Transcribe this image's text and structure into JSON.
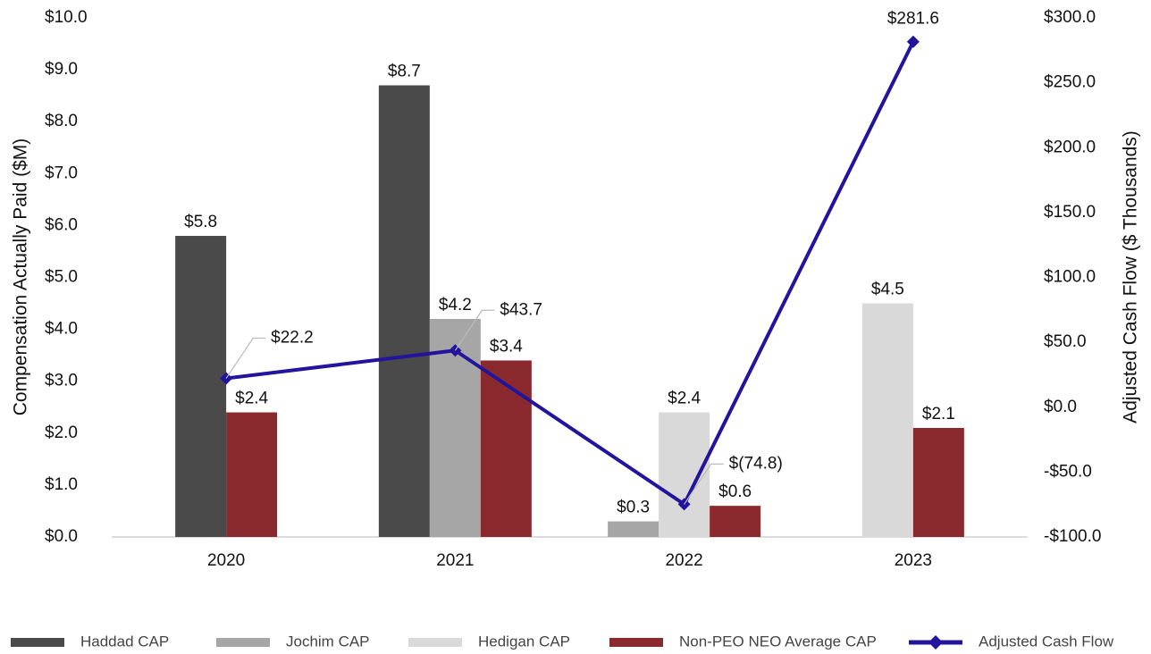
{
  "chart_data": {
    "type": "bar_line",
    "categories": [
      "2020",
      "2021",
      "2022",
      "2023"
    ],
    "ylabel": "Compensation Actually Paid ($M)",
    "y2label": "Adjusted Cash Flow ($ Thousands)",
    "ylim": [
      0,
      10
    ],
    "yticks": [
      {
        "value": 0,
        "label": "$0.0"
      },
      {
        "value": 1,
        "label": "$1.0"
      },
      {
        "value": 2,
        "label": "$2.0"
      },
      {
        "value": 3,
        "label": "$3.0"
      },
      {
        "value": 4,
        "label": "$4.0"
      },
      {
        "value": 5,
        "label": "$5.0"
      },
      {
        "value": 6,
        "label": "$6.0"
      },
      {
        "value": 7,
        "label": "$7.0"
      },
      {
        "value": 8,
        "label": "$8.0"
      },
      {
        "value": 9,
        "label": "$9.0"
      },
      {
        "value": 10,
        "label": "$10.0"
      }
    ],
    "y2lim": [
      -100,
      300
    ],
    "y2ticks": [
      {
        "value": -100,
        "label": "-$100.0"
      },
      {
        "value": -50,
        "label": "-$50.0"
      },
      {
        "value": 0,
        "label": "$0.0"
      },
      {
        "value": 50,
        "label": "$50.0"
      },
      {
        "value": 100,
        "label": "$100.0"
      },
      {
        "value": 150,
        "label": "$150.0"
      },
      {
        "value": 200,
        "label": "$200.0"
      },
      {
        "value": 250,
        "label": "$250.0"
      },
      {
        "value": 300,
        "label": "$300.0"
      }
    ],
    "series": [
      {
        "name": "Haddad CAP",
        "type": "bar",
        "color": "#4a4a4a",
        "values": [
          5.8,
          8.7,
          null,
          null
        ],
        "value_labels": [
          "$5.8",
          "$8.7",
          null,
          null
        ]
      },
      {
        "name": "Jochim CAP",
        "type": "bar",
        "color": "#a6a6a6",
        "values": [
          null,
          4.2,
          0.3,
          null
        ],
        "value_labels": [
          null,
          "$4.2",
          "$0.3",
          null
        ]
      },
      {
        "name": "Hedigan CAP",
        "type": "bar",
        "color": "#d9d9d9",
        "values": [
          null,
          null,
          2.4,
          4.5
        ],
        "value_labels": [
          null,
          null,
          "$2.4",
          "$4.5"
        ]
      },
      {
        "name": "Non-PEO NEO Average CAP",
        "type": "bar",
        "color": "#8b2a2e",
        "values": [
          2.4,
          3.4,
          0.6,
          2.1
        ],
        "value_labels": [
          "$2.4",
          "$3.4",
          "$0.6",
          "$2.1"
        ]
      },
      {
        "name": "Adjusted Cash Flow",
        "type": "line",
        "axis": "y2",
        "color": "#22149c",
        "values": [
          22.2,
          43.7,
          -74.8,
          281.6
        ],
        "value_labels": [
          "$22.2",
          "$43.7",
          "$(74.8)",
          "$281.6"
        ]
      }
    ]
  }
}
